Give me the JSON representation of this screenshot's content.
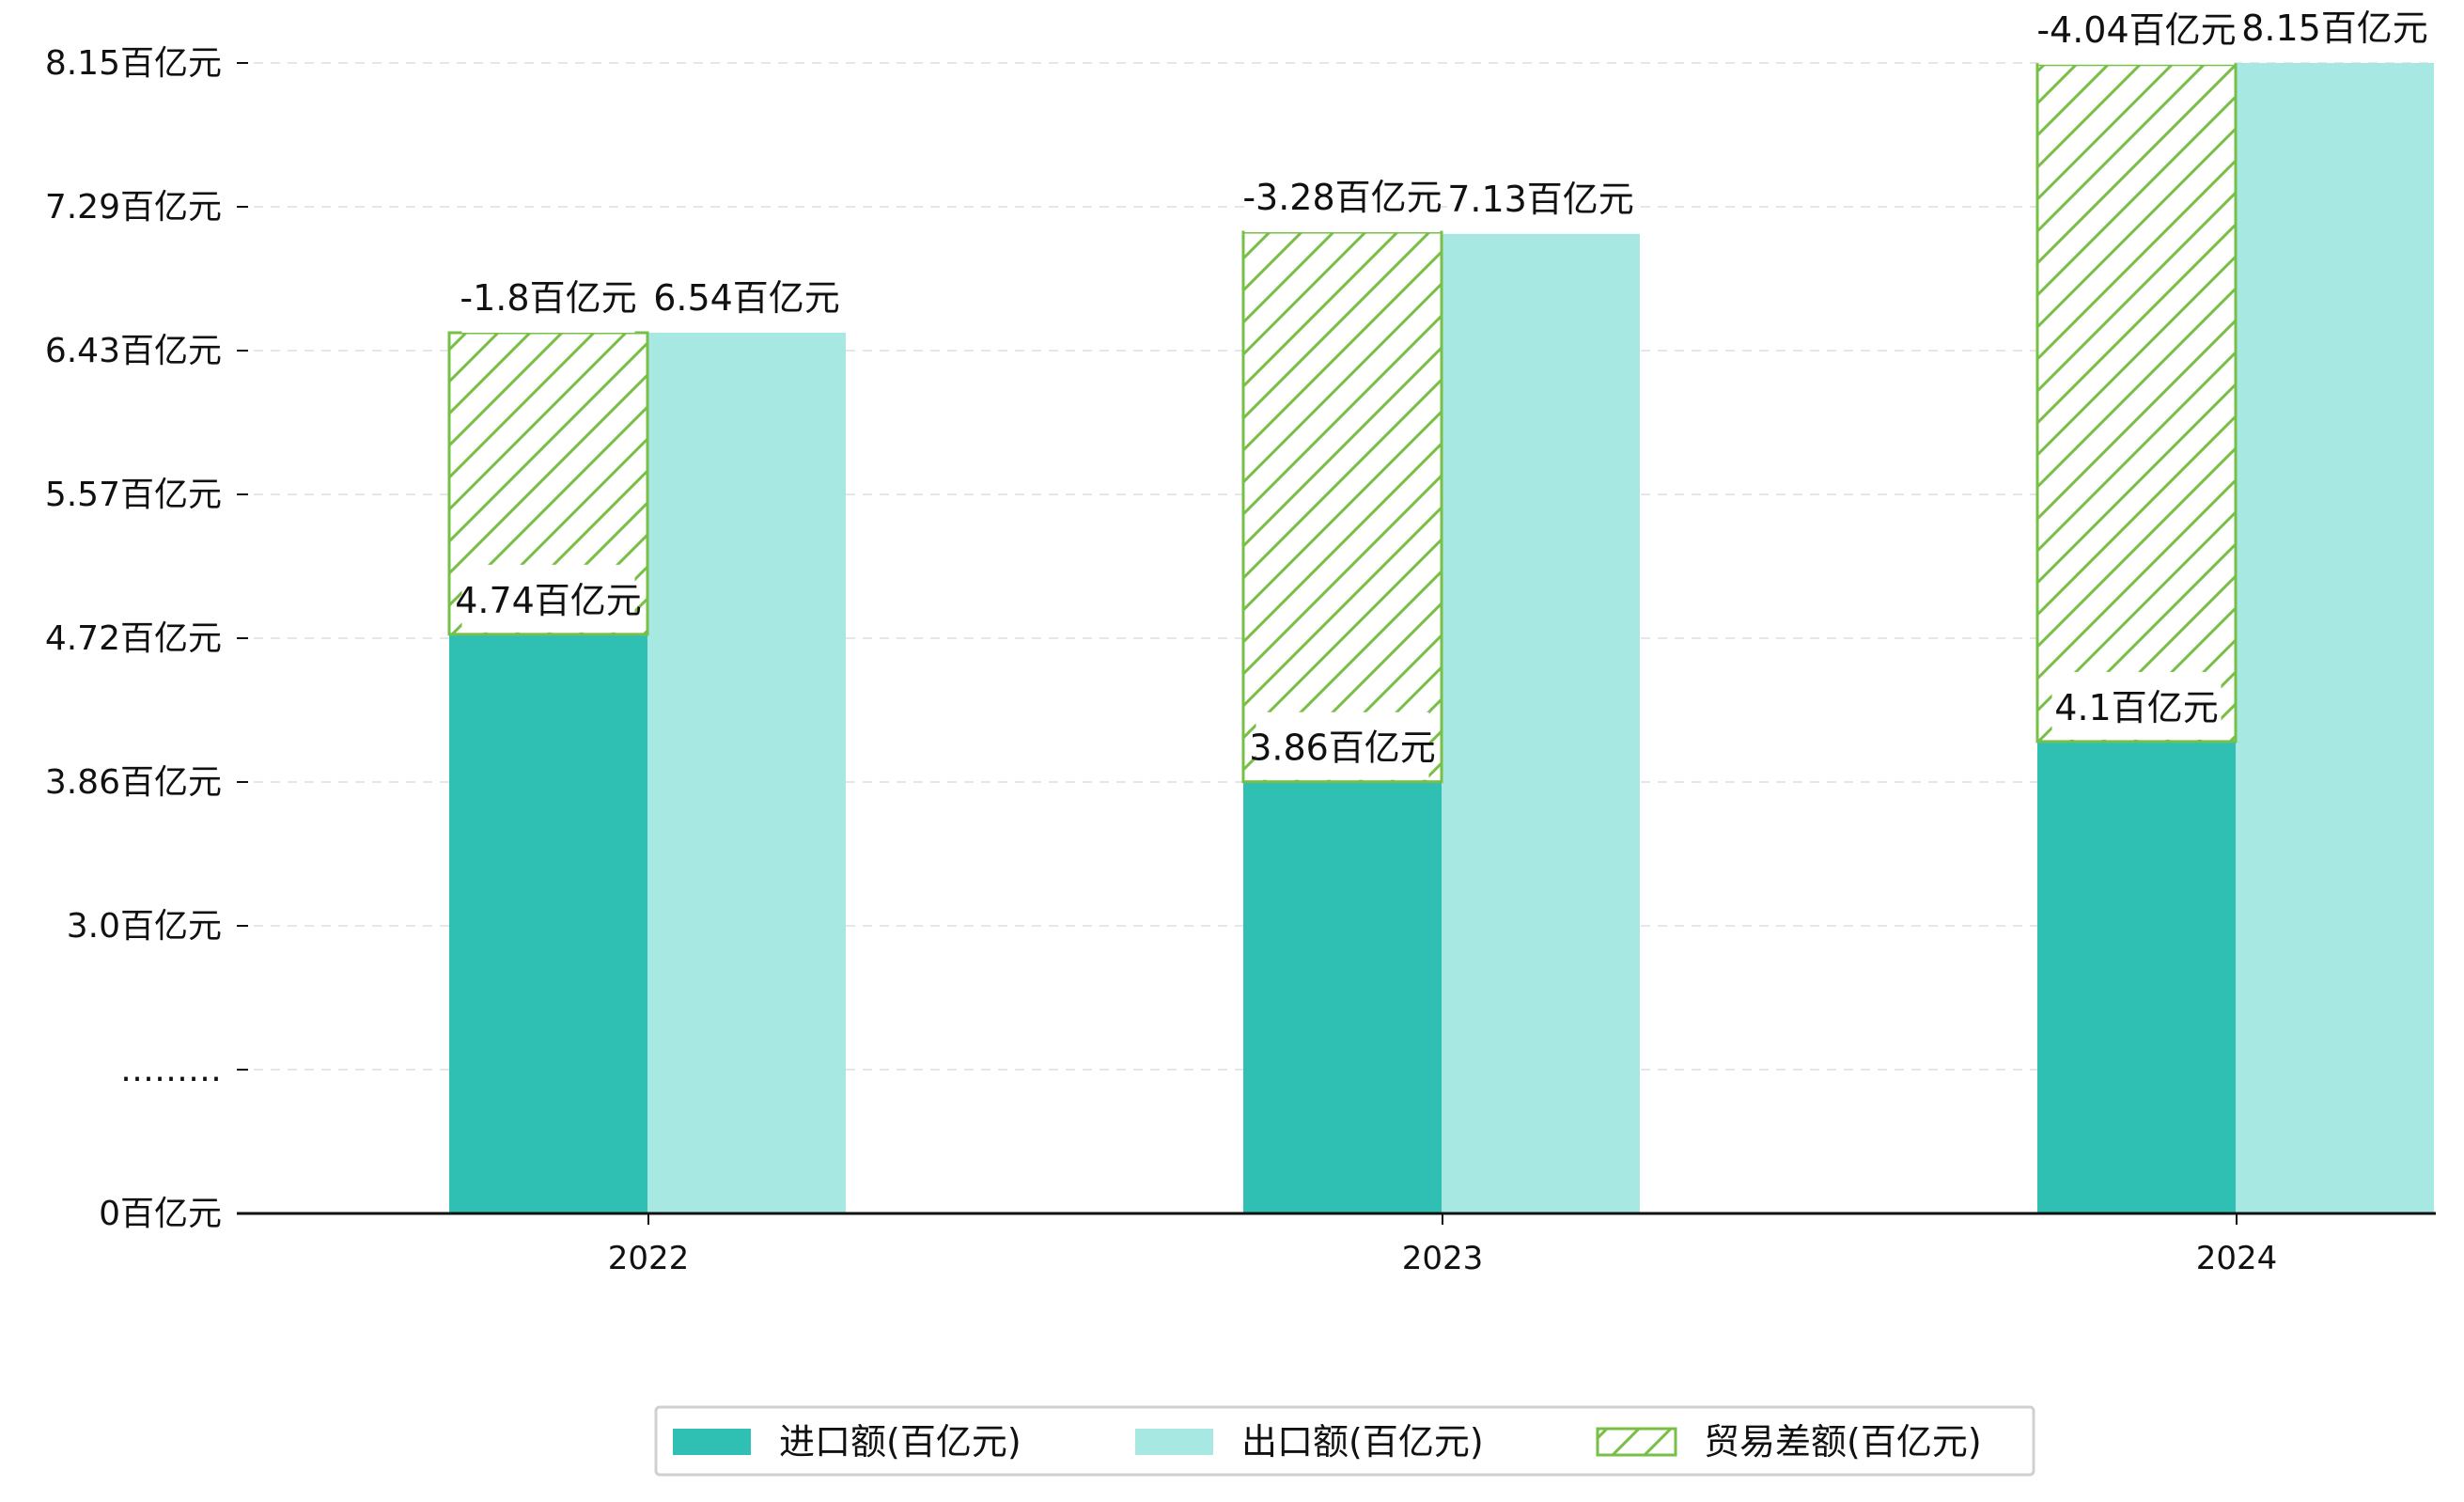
{
  "chart_data": {
    "type": "bar",
    "categories": [
      "2022",
      "2023",
      "2024"
    ],
    "unit": "百亿元",
    "series": [
      {
        "name": "进口额(百亿元)",
        "values": [
          4.74,
          3.86,
          4.1
        ],
        "labels": [
          "4.74百亿元",
          "3.86百亿元",
          "4.1百亿元"
        ],
        "color": "#2fc0b3"
      },
      {
        "name": "出口额(百亿元)",
        "values": [
          6.54,
          7.13,
          8.15
        ],
        "labels": [
          "6.54百亿元",
          "7.13百亿元",
          "8.15百亿元"
        ],
        "color": "#a8e8e2"
      },
      {
        "name": "贸易差额(百亿元)",
        "values": [
          -1.8,
          -3.28,
          -4.04
        ],
        "labels": [
          "-1.8百亿元",
          "-3.28百亿元",
          "-4.04百亿元"
        ],
        "color": "#77bf47",
        "pattern": "hatch"
      }
    ],
    "yticks": [
      {
        "label": "0百亿元",
        "value": 0
      },
      {
        "label": "………",
        "value": null
      },
      {
        "label": "3.0百亿元",
        "value": 3.0
      },
      {
        "label": "3.86百亿元",
        "value": 3.86
      },
      {
        "label": "4.72百亿元",
        "value": 4.72
      },
      {
        "label": "5.57百亿元",
        "value": 5.57
      },
      {
        "label": "6.43百亿元",
        "value": 6.43
      },
      {
        "label": "7.29百亿元",
        "value": 7.29
      },
      {
        "label": "8.15百亿元",
        "value": 8.15
      }
    ],
    "axis_break": true,
    "grid": "horizontal-dashed",
    "legend_position": "bottom-center"
  }
}
